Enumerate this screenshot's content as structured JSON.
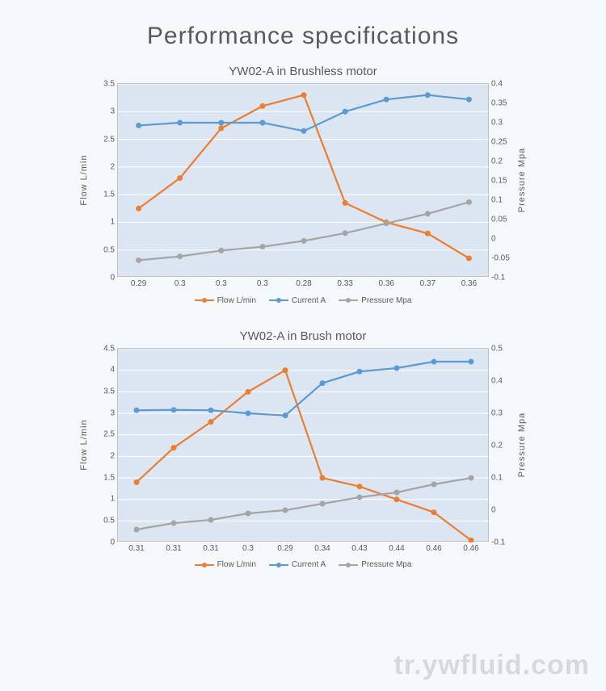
{
  "page": {
    "title": "Performance specifications"
  },
  "colors": {
    "background": "#f5f9fc",
    "plot_bg": "#dbe6f2",
    "grid": "#ffffff",
    "text": "#595959",
    "series_flow": "#ed7d31",
    "series_current": "#5b9bd5",
    "series_pressure": "#a5a5a5"
  },
  "watermark": "tr.ywfluid.com",
  "legend": {
    "items": [
      {
        "label": "Flow L/min",
        "color": "#ed7d31"
      },
      {
        "label": "Current A",
        "color": "#5b9bd5"
      },
      {
        "label": "Pressure Mpa",
        "color": "#a5a5a5"
      }
    ]
  },
  "charts": [
    {
      "title": "YW02-A in Brushless motor",
      "type": "line",
      "left_axis": {
        "label": "Flow  L/min",
        "min": 0,
        "max": 3.5,
        "step": 0.5,
        "ticks": [
          "0",
          "0.5",
          "1",
          "1.5",
          "2",
          "2.5",
          "3",
          "3.5"
        ]
      },
      "right_axis": {
        "label": "Pressure  Mpa",
        "min": -0.1,
        "max": 0.4,
        "step": 0.05,
        "ticks": [
          "-0.1",
          "-0.05",
          "0",
          "0.05",
          "0.1",
          "0.15",
          "0.2",
          "0.25",
          "0.3",
          "0.35",
          "0.4"
        ]
      },
      "x_labels": [
        "0.29",
        "0.3",
        "0.3",
        "0.3",
        "0.28",
        "0.33",
        "0.36",
        "0.37",
        "0.36"
      ],
      "series": [
        {
          "name": "Flow L/min",
          "axis": "left",
          "color": "#ed7d31",
          "marker": "circle",
          "line_width": 2.2,
          "values": [
            1.25,
            1.8,
            2.7,
            3.1,
            3.3,
            1.35,
            1.0,
            0.8,
            0.35
          ]
        },
        {
          "name": "Current A",
          "axis": "left",
          "color": "#5b9bd5",
          "marker": "circle",
          "line_width": 2.2,
          "values": [
            2.75,
            2.8,
            2.8,
            2.8,
            2.65,
            3.0,
            3.22,
            3.3,
            3.22
          ]
        },
        {
          "name": "Pressure Mpa",
          "axis": "right",
          "color": "#a5a5a5",
          "marker": "circle",
          "line_width": 2.2,
          "values": [
            -0.055,
            -0.045,
            -0.03,
            -0.02,
            -0.005,
            0.015,
            0.04,
            0.065,
            0.095
          ]
        }
      ]
    },
    {
      "title": "YW02-A in Brush motor",
      "type": "line",
      "left_axis": {
        "label": "Flow  L/min",
        "min": 0,
        "max": 4.5,
        "step": 0.5,
        "ticks": [
          "0",
          "0.5",
          "1",
          "1.5",
          "2",
          "2.5",
          "3",
          "3.5",
          "4",
          "4.5"
        ]
      },
      "right_axis": {
        "label": "Pressure  Mpa",
        "min": -0.1,
        "max": 0.5,
        "step": 0.1,
        "ticks": [
          "-0.1",
          "0",
          "0.1",
          "0.2",
          "0.3",
          "0.4",
          "0.5"
        ]
      },
      "x_labels": [
        "0.31",
        "0.31",
        "0.31",
        "0.3",
        "0.29",
        "0.34",
        "0.43",
        "0.44",
        "0.46",
        "0.46"
      ],
      "series": [
        {
          "name": "Flow L/min",
          "axis": "left",
          "color": "#ed7d31",
          "marker": "circle",
          "line_width": 2.2,
          "values": [
            1.4,
            2.2,
            2.8,
            3.5,
            4.0,
            1.5,
            1.3,
            1.0,
            0.7,
            0.05
          ]
        },
        {
          "name": "Current A",
          "axis": "left",
          "color": "#5b9bd5",
          "marker": "circle",
          "line_width": 2.2,
          "values": [
            3.07,
            3.08,
            3.07,
            3.0,
            2.95,
            3.7,
            3.97,
            4.05,
            4.2,
            4.2
          ]
        },
        {
          "name": "Pressure Mpa",
          "axis": "right",
          "color": "#a5a5a5",
          "marker": "circle",
          "line_width": 2.2,
          "values": [
            -0.06,
            -0.04,
            -0.03,
            -0.01,
            0.0,
            0.02,
            0.04,
            0.055,
            0.08,
            0.1
          ]
        }
      ]
    }
  ]
}
